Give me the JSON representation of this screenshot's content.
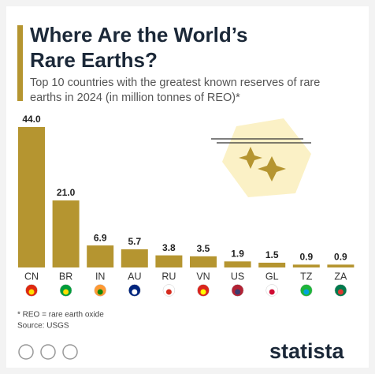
{
  "chart_data": {
    "type": "bar",
    "title": "Where Are the World’s Rare Earths?",
    "subtitle": "Top 10 countries with the greatest known reserves of rare earths in 2024 (in million tonnes of REO)*",
    "categories": [
      "CN",
      "BR",
      "IN",
      "AU",
      "RU",
      "VN",
      "US",
      "GL",
      "TZ",
      "ZA"
    ],
    "values": [
      44.0,
      21.0,
      6.9,
      5.7,
      3.8,
      3.5,
      1.9,
      1.5,
      0.9,
      0.9
    ],
    "value_labels": [
      "44.0",
      "21.0",
      "6.9",
      "5.7",
      "3.8",
      "3.5",
      "1.9",
      "1.5",
      "0.9",
      "0.9"
    ],
    "color": "#b59530",
    "footnote": "* REO = rare earth oxide",
    "source": "Source: USGS",
    "brand": "statista"
  }
}
